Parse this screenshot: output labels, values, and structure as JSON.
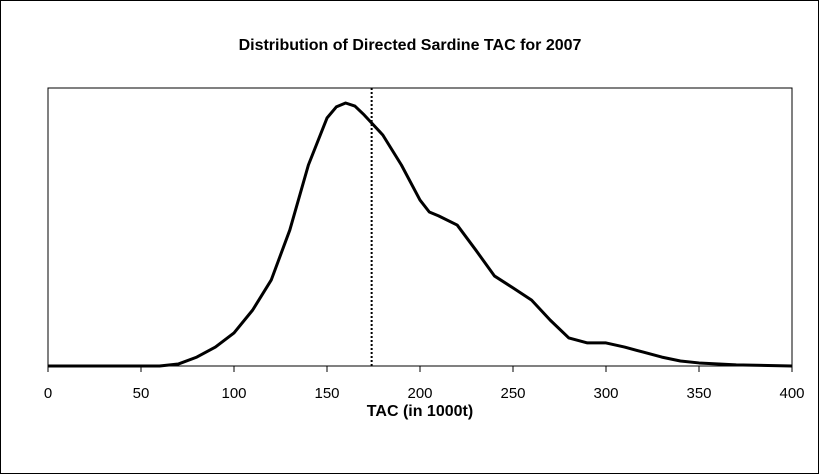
{
  "chart_data": {
    "type": "line",
    "title": "Distribution of Directed Sardine TAC for 2007",
    "x_label": "TAC (in 1000t)",
    "x": [
      0,
      50,
      60,
      70,
      80,
      90,
      100,
      110,
      120,
      130,
      140,
      150,
      155,
      160,
      165,
      170,
      180,
      190,
      200,
      205,
      210,
      220,
      230,
      240,
      250,
      260,
      270,
      280,
      290,
      300,
      310,
      320,
      330,
      340,
      350,
      370,
      400
    ],
    "values": [
      0,
      0,
      0,
      0.007,
      0.032,
      0.068,
      0.119,
      0.201,
      0.309,
      0.489,
      0.723,
      0.892,
      0.932,
      0.946,
      0.935,
      0.903,
      0.831,
      0.723,
      0.597,
      0.554,
      0.54,
      0.507,
      0.417,
      0.324,
      0.281,
      0.237,
      0.165,
      0.101,
      0.083,
      0.083,
      0.068,
      0.05,
      0.032,
      0.018,
      0.011,
      0.004,
      0
    ],
    "color": "#000000",
    "reference_line": {
      "x": 174
    },
    "xlim": [
      0,
      400
    ],
    "xticks": [
      0,
      50,
      100,
      150,
      200,
      250,
      300,
      350,
      400
    ],
    "ylim": [
      0,
      1
    ]
  }
}
